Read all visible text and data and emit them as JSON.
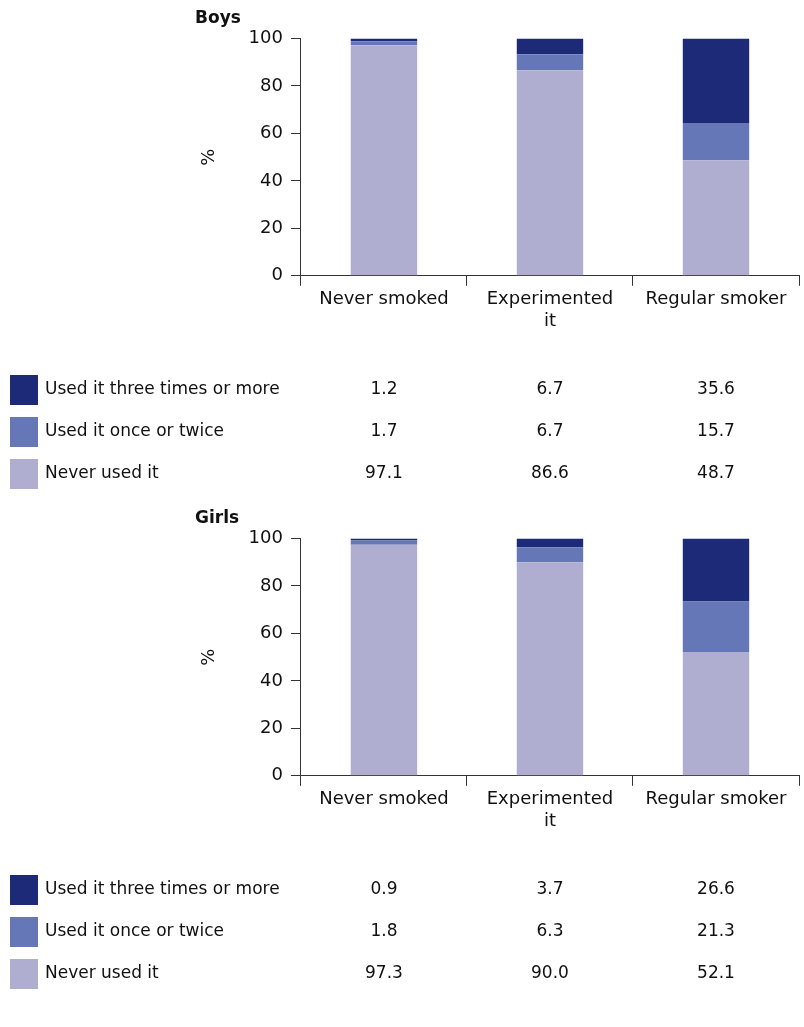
{
  "chart_data": [
    {
      "type": "bar",
      "title": "Boys",
      "ylabel": "%",
      "stacked": true,
      "categories": [
        "Never smoked",
        "Experimented it",
        "Regular smoker"
      ],
      "ylim": [
        0,
        100
      ],
      "yticks": [
        0,
        20,
        40,
        60,
        80,
        100
      ],
      "grid": false,
      "legend": "bottom",
      "series": [
        {
          "name": "Never used it",
          "color": "#b0aed0",
          "values": [
            97.1,
            86.6,
            48.7
          ],
          "value_labels": [
            "97.1",
            "86.6",
            "48.7"
          ]
        },
        {
          "name": "Used it once or twice",
          "color": "#6677b8",
          "values": [
            1.7,
            6.7,
            15.7
          ],
          "value_labels": [
            "1.7",
            "6.7",
            "15.7"
          ]
        },
        {
          "name": "Used it three times or more",
          "color": "#1c2a78",
          "values": [
            1.2,
            6.7,
            35.6
          ],
          "value_labels": [
            "1.2",
            "6.7",
            "35.6"
          ]
        }
      ]
    },
    {
      "type": "bar",
      "title": "Girls",
      "ylabel": "%",
      "stacked": true,
      "categories": [
        "Never smoked",
        "Experimented it",
        "Regular smoker"
      ],
      "ylim": [
        0,
        100
      ],
      "yticks": [
        0,
        20,
        40,
        60,
        80,
        100
      ],
      "grid": false,
      "legend": "bottom",
      "series": [
        {
          "name": "Never used it",
          "color": "#b0aed0",
          "values": [
            97.3,
            90.0,
            52.1
          ],
          "value_labels": [
            "97.3",
            "90.0",
            "52.1"
          ]
        },
        {
          "name": "Used it once or twice",
          "color": "#6677b8",
          "values": [
            1.8,
            6.3,
            21.3
          ],
          "value_labels": [
            "1.8",
            "6.3",
            "21.3"
          ]
        },
        {
          "name": "Used it three times or more",
          "color": "#1c2a78",
          "values": [
            0.9,
            3.7,
            26.6
          ],
          "value_labels": [
            "0.9",
            "3.7",
            "26.6"
          ]
        }
      ]
    }
  ]
}
